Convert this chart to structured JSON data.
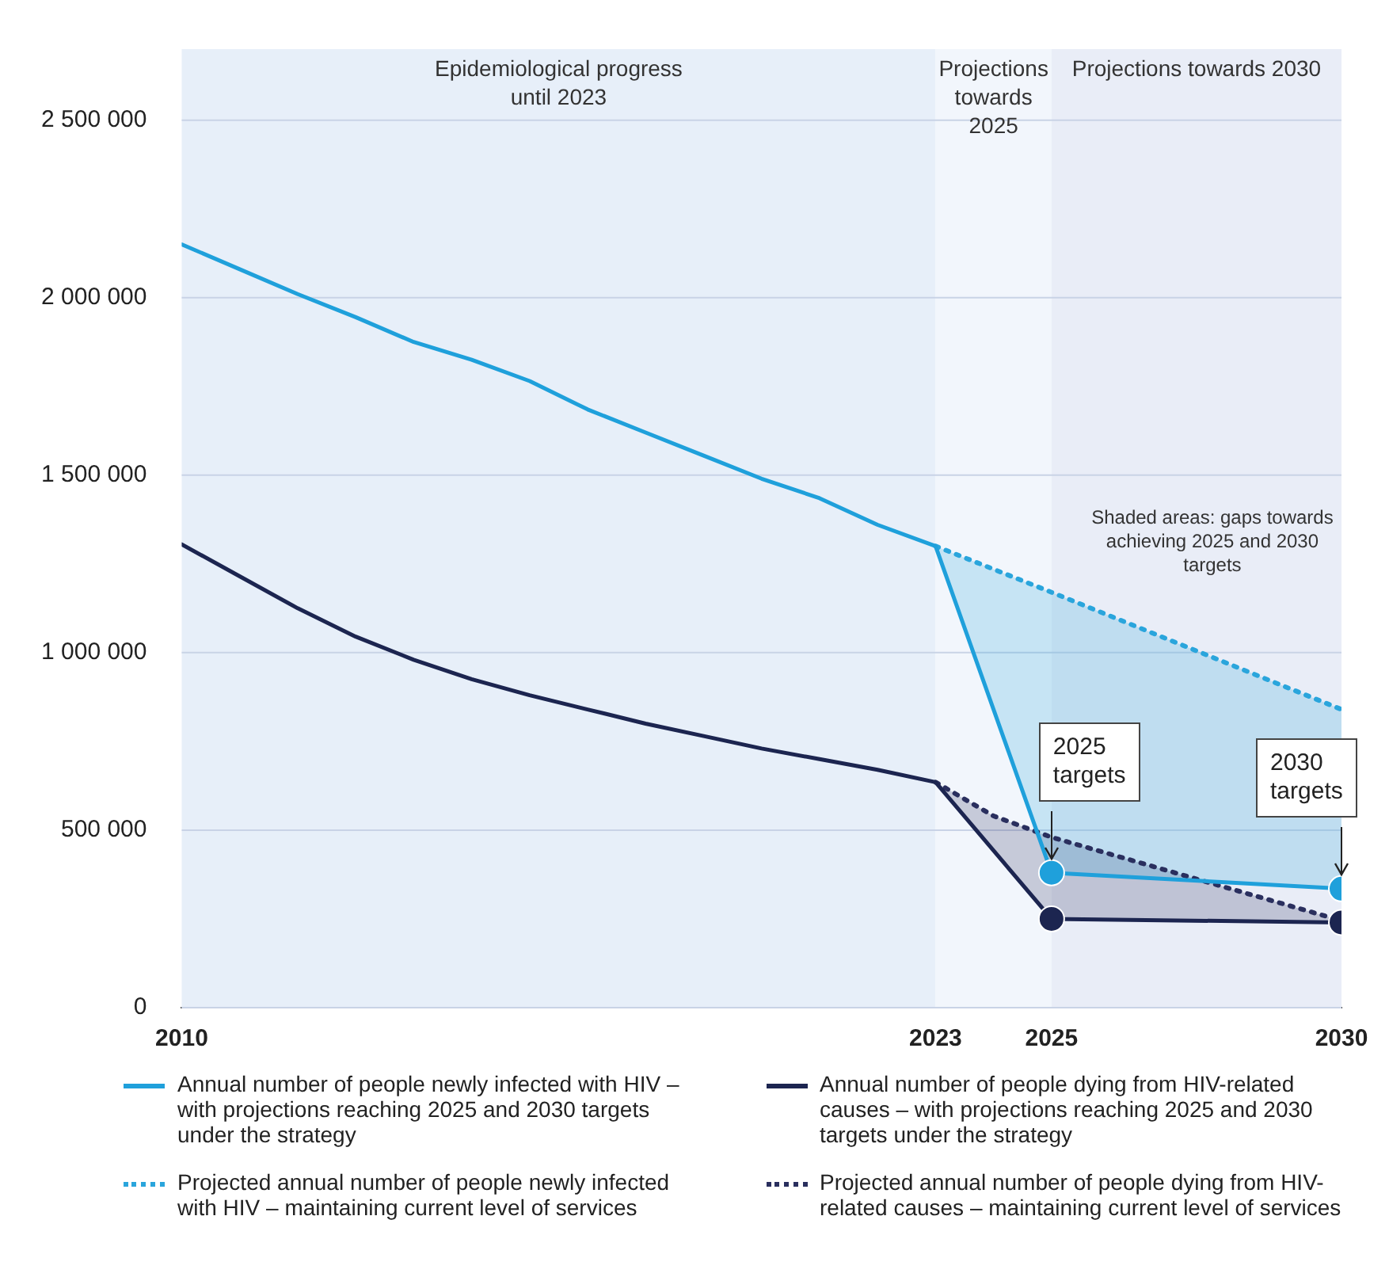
{
  "chart_data": {
    "type": "line",
    "x": [
      2010,
      2011,
      2012,
      2013,
      2014,
      2015,
      2016,
      2017,
      2018,
      2019,
      2020,
      2021,
      2022,
      2023,
      2025,
      2030
    ],
    "series": [
      {
        "name": "Annual number of people newly infected with HIV – with projections reaching 2025 and 2030 targets under the strategy",
        "color": "#1fa0db",
        "line_style": "solid",
        "values": [
          2150000,
          2080000,
          2010000,
          1945000,
          1875000,
          1825000,
          1765000,
          1685000,
          1620000,
          1555000,
          1490000,
          1435000,
          1360000,
          1300000,
          380000,
          335000
        ]
      },
      {
        "name": "Annual number of people dying from HIV-related causes – with projections reaching 2025 and 2030 targets under the strategy",
        "color": "#1c2550",
        "line_style": "solid",
        "values": [
          1305000,
          1215000,
          1125000,
          1045000,
          980000,
          925000,
          880000,
          840000,
          800000,
          765000,
          730000,
          700000,
          670000,
          635000,
          250000,
          240000
        ]
      },
      {
        "name": "Projected annual number of people newly infected with HIV – maintaining current level of services",
        "color": "#2aa5dc",
        "line_style": "dotted",
        "x": [
          2023,
          2025,
          2030
        ],
        "values": [
          1300000,
          1170000,
          840000
        ],
        "lower": [
          1300000,
          380000,
          335000
        ],
        "upper": [
          1300000,
          1170000,
          840000
        ]
      },
      {
        "name": "Projected annual number of people dying from HIV-related causes – maintaining current level of services",
        "color": "#2a2f5e",
        "line_style": "dotted",
        "x": [
          2023,
          2024,
          2025,
          2030
        ],
        "values": [
          635000,
          540000,
          480000,
          245000
        ],
        "lower": [
          635000,
          442500,
          250000,
          240000
        ],
        "upper": [
          635000,
          540000,
          480000,
          245000
        ]
      }
    ],
    "xlim": [
      2010,
      2030
    ],
    "xticks": [
      2010,
      2023,
      2025,
      2030
    ],
    "ylim": [
      0,
      2700000
    ],
    "yticks": [
      {
        "value": 0,
        "label": "0"
      },
      {
        "value": 500000,
        "label": "500 000"
      },
      {
        "value": 1000000,
        "label": "1 000 000"
      },
      {
        "value": 1500000,
        "label": "1 500 000"
      },
      {
        "value": 2000000,
        "label": "2 000 000"
      },
      {
        "value": 2500000,
        "label": "2 500 000"
      }
    ],
    "grid": "y",
    "legend": "bottom",
    "bands": [
      {
        "axis": "x",
        "from": 2010,
        "to": 2023,
        "label": "Epidemiological progress until 2023",
        "color": "#e7eff9"
      },
      {
        "axis": "x",
        "from": 2023,
        "to": 2025,
        "label": "Projections towards 2025",
        "color": "#f2f6fc"
      },
      {
        "axis": "x",
        "from": 2025,
        "to": 2030,
        "label": "Projections towards 2030",
        "color": "#e9edf7"
      }
    ],
    "annotations": [
      "Shaded areas: gaps towards achieving 2025 and 2030 targets",
      "2025 targets",
      "2030 targets"
    ]
  }
}
